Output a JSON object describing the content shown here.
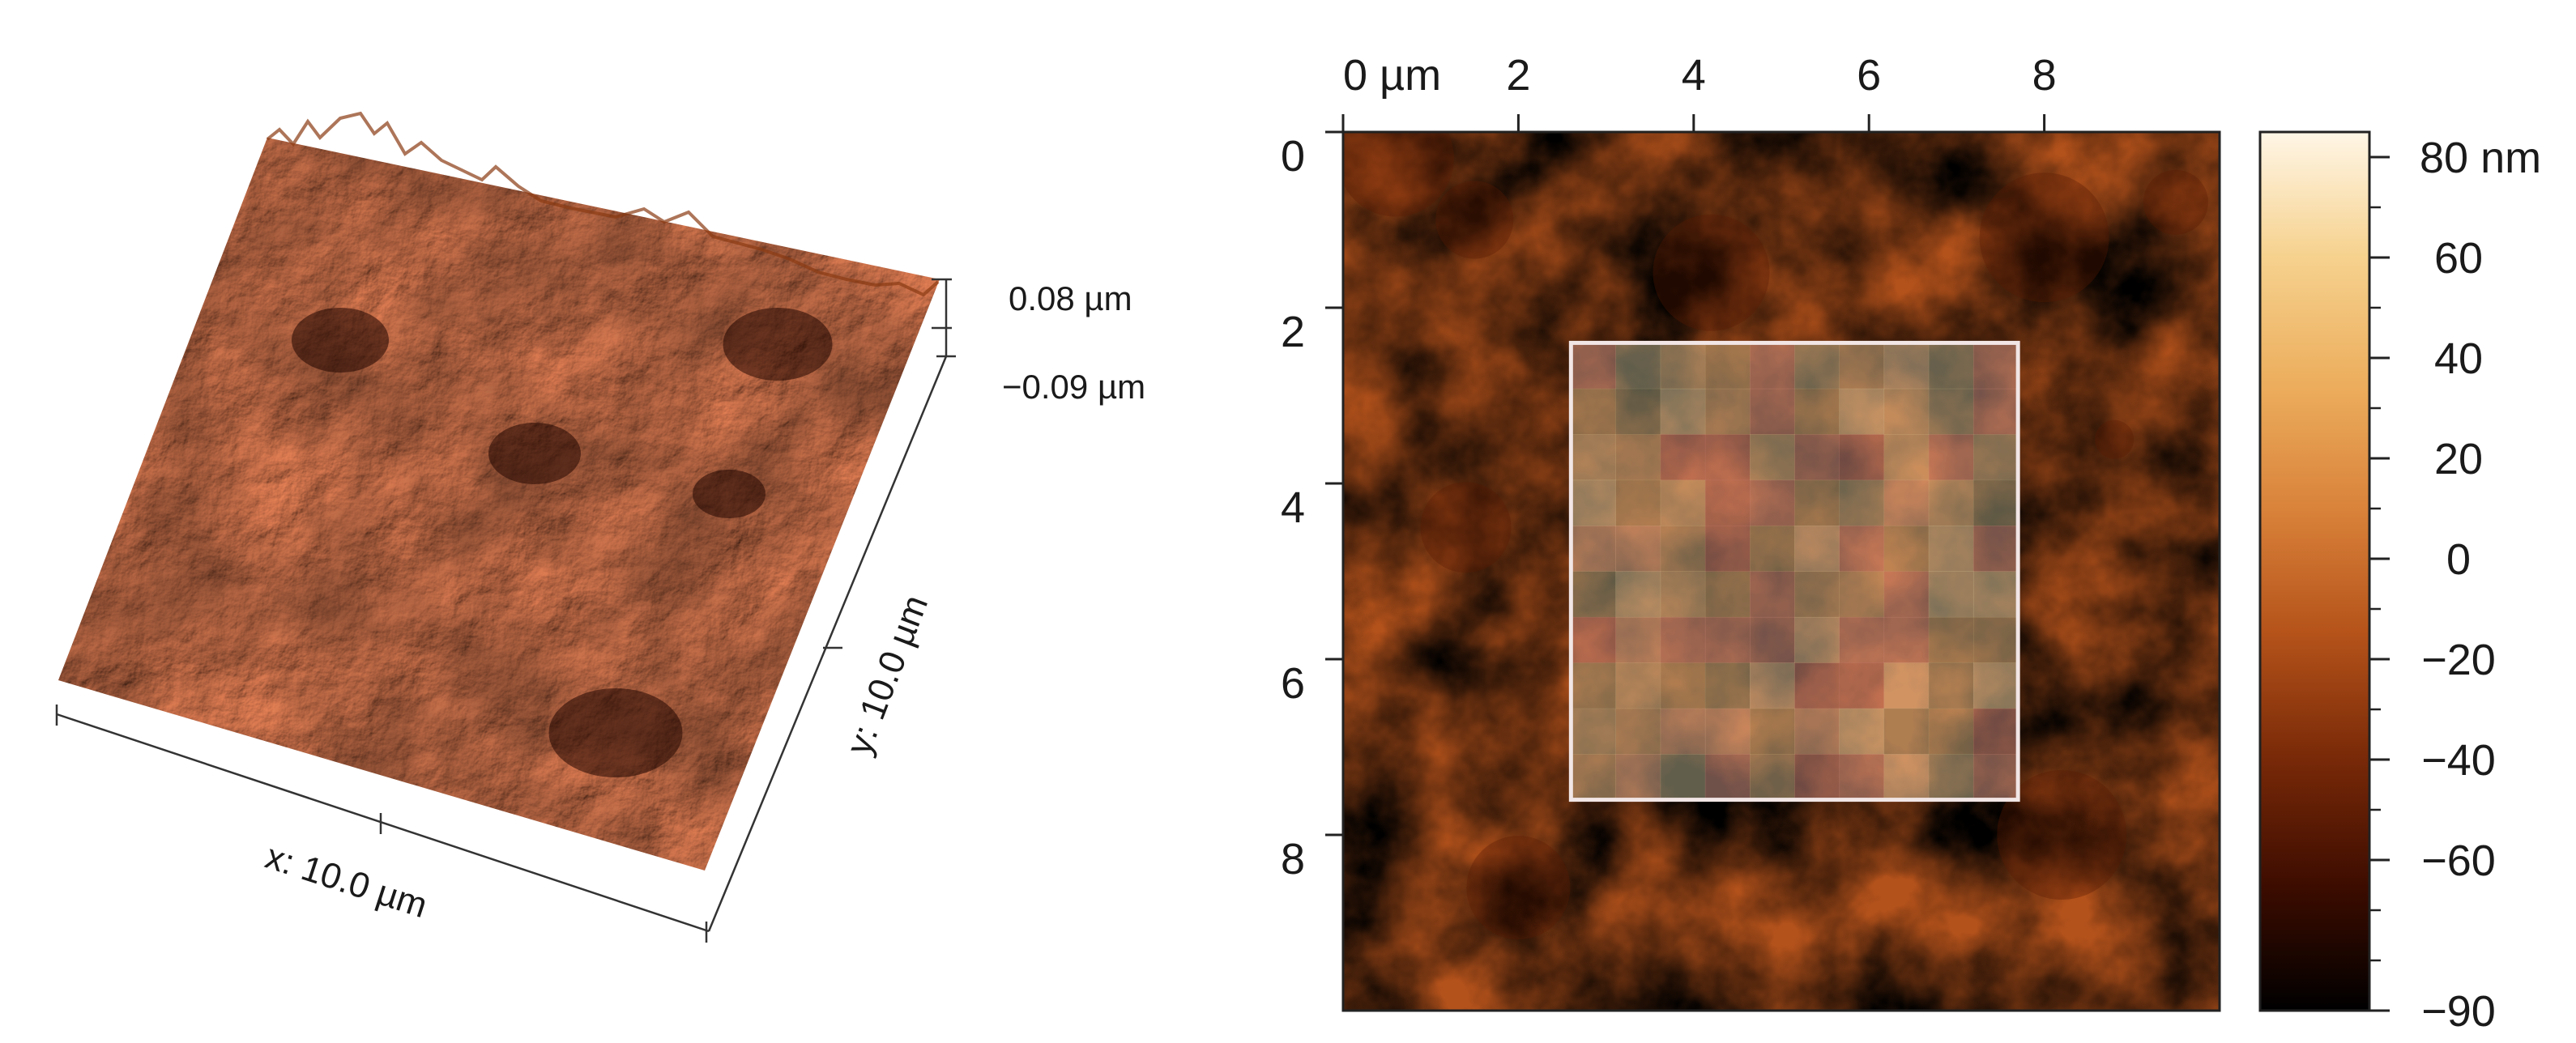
{
  "chart_data": [
    {
      "type": "heatmap",
      "view": "3d-surface",
      "x_axis_label": "x: 10.0 µm",
      "y_axis_label": "y: 10.0 µm",
      "z_range_labels": [
        "0.08 µm",
        "−0.09 µm"
      ],
      "z_range": [
        -0.09,
        0.08
      ],
      "z_unit": "µm",
      "grid": false
    },
    {
      "type": "heatmap",
      "view": "2d-map",
      "x_ticks": [
        "0 µm",
        "2",
        "4",
        "6",
        "8"
      ],
      "x_tick_values": [
        0,
        2,
        4,
        6,
        8
      ],
      "y_ticks": [
        "0",
        "2",
        "4",
        "6",
        "8"
      ],
      "y_tick_values": [
        0,
        2,
        4,
        6,
        8
      ],
      "xlim": [
        0,
        10
      ],
      "ylim": [
        0,
        10
      ],
      "x_axis_position": "top",
      "y_axis_direction": "down",
      "colorbar_ticks": [
        "80 nm",
        "60",
        "40",
        "20",
        "0",
        "−20",
        "−40",
        "−60",
        "−90"
      ],
      "colorbar_values": [
        80,
        60,
        40,
        20,
        0,
        -20,
        -40,
        -60,
        -90
      ],
      "colorbar_range": [
        -90,
        85
      ],
      "colorbar_unit": "nm",
      "colormap": [
        "#000000",
        "#3c0c00",
        "#7a2a08",
        "#b5531a",
        "#d9823a",
        "#ecad5c",
        "#f6d28f",
        "#fff6e6"
      ],
      "highlight_region": {
        "x0": 2.6,
        "x1": 7.7,
        "y0": 2.4,
        "y1": 7.6
      },
      "grid": false
    }
  ]
}
